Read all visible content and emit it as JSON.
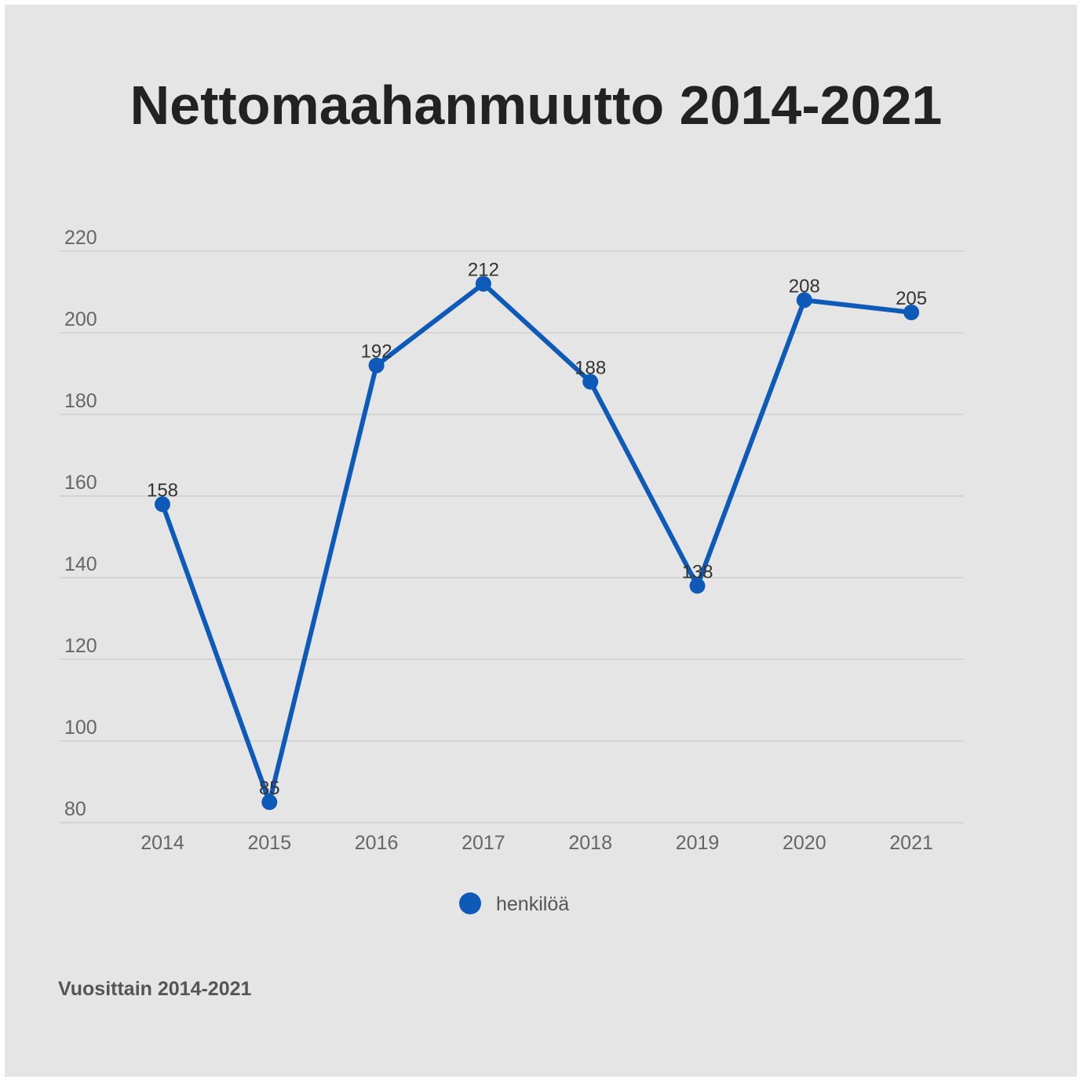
{
  "chart_data": {
    "type": "line",
    "title": "Nettomaahanmuutto 2014-2021",
    "footnote": "Vuosittain 2014-2021",
    "x": [
      "2014",
      "2015",
      "2016",
      "2017",
      "2018",
      "2019",
      "2020",
      "2021"
    ],
    "series": [
      {
        "name": "henkilöä",
        "values": [
          158,
          85,
          192,
          212,
          188,
          138,
          208,
          205
        ],
        "labels": [
          "158",
          "85",
          "192",
          "212",
          "188",
          "138",
          "208",
          "205"
        ],
        "color": "#0e5ab8"
      }
    ],
    "ylim": [
      80,
      220
    ],
    "yticks": [
      "80",
      "100",
      "120",
      "140",
      "160",
      "180",
      "200",
      "220"
    ],
    "grid": true,
    "legend_position": "bottom-center"
  }
}
